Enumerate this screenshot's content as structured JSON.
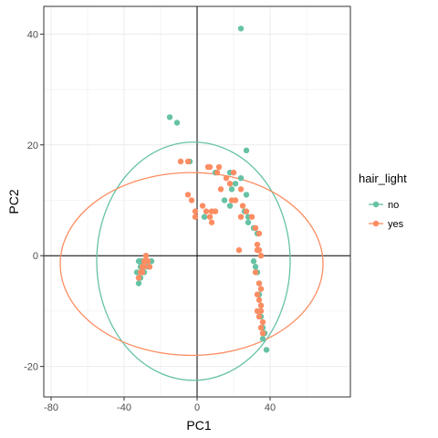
{
  "chart_data": {
    "type": "scatter",
    "xlabel": "PC1",
    "ylabel": "PC2",
    "xlim": [
      -84,
      84
    ],
    "ylim": [
      -25.5,
      45
    ],
    "x_ticks": [
      -80,
      -40,
      0,
      40
    ],
    "y_ticks": [
      -20,
      0,
      20,
      40
    ],
    "grid": true,
    "reference_lines": {
      "x": 0,
      "y": 0
    },
    "legend": {
      "title": "hair_light",
      "placement": "right"
    },
    "series": [
      {
        "name": "no",
        "color": "#66C2A5",
        "points": [
          [
            24,
            41
          ],
          [
            -15,
            25
          ],
          [
            -11,
            24
          ],
          [
            -4,
            17
          ],
          [
            27,
            19
          ],
          [
            10,
            15
          ],
          [
            18,
            15
          ],
          [
            21,
            13
          ],
          [
            24,
            14
          ],
          [
            19,
            12
          ],
          [
            27,
            11
          ],
          [
            15,
            10
          ],
          [
            18,
            9
          ],
          [
            26,
            8
          ],
          [
            28,
            7
          ],
          [
            28,
            6
          ],
          [
            4,
            7
          ],
          [
            31,
            5
          ],
          [
            33,
            4
          ],
          [
            31,
            -1
          ],
          [
            32,
            -2
          ],
          [
            33,
            -3
          ],
          [
            34,
            -5
          ],
          [
            34,
            -7
          ],
          [
            35,
            -9
          ],
          [
            35,
            -11
          ],
          [
            36,
            -13
          ],
          [
            37,
            -14
          ],
          [
            36,
            -15
          ],
          [
            38,
            -17
          ],
          [
            -32,
            -5
          ],
          [
            -32,
            -4
          ],
          [
            -33,
            -3
          ],
          [
            -31,
            -2
          ],
          [
            -32,
            -1
          ],
          [
            -31,
            -1
          ],
          [
            -30,
            -2
          ],
          [
            -28,
            -1
          ],
          [
            -25,
            -1
          ],
          [
            -27,
            -2
          ],
          [
            -29,
            -3
          ],
          [
            -31,
            -4
          ],
          [
            -30,
            -1
          ]
        ],
        "ellipse": {
          "center": [
            -2,
            -1
          ],
          "rx": 53,
          "ry": 21.5
        }
      },
      {
        "name": "yes",
        "color": "#FC8D62",
        "points": [
          [
            -9,
            17
          ],
          [
            -5,
            17
          ],
          [
            6,
            16
          ],
          [
            7,
            16
          ],
          [
            12,
            16
          ],
          [
            11,
            15
          ],
          [
            20,
            15
          ],
          [
            16,
            14
          ],
          [
            18,
            13
          ],
          [
            24,
            12
          ],
          [
            13,
            12
          ],
          [
            -5,
            11
          ],
          [
            -3,
            10
          ],
          [
            19,
            10
          ],
          [
            21,
            10
          ],
          [
            25,
            9
          ],
          [
            27,
            8
          ],
          [
            24,
            7
          ],
          [
            3,
            9
          ],
          [
            5,
            8
          ],
          [
            8,
            8
          ],
          [
            10,
            8
          ],
          [
            -1,
            8
          ],
          [
            -1,
            7
          ],
          [
            7,
            7
          ],
          [
            8,
            6
          ],
          [
            30,
            7
          ],
          [
            32,
            5
          ],
          [
            34,
            4
          ],
          [
            33,
            2
          ],
          [
            34,
            1
          ],
          [
            35,
            0
          ],
          [
            33,
            1
          ],
          [
            32,
            -3
          ],
          [
            34,
            -5
          ],
          [
            35,
            -6
          ],
          [
            33,
            -7
          ],
          [
            34,
            -8
          ],
          [
            35,
            -9
          ],
          [
            33,
            -10
          ],
          [
            35,
            -10
          ],
          [
            34,
            -11
          ],
          [
            36,
            -12
          ],
          [
            35,
            -13
          ],
          [
            36,
            -14
          ],
          [
            -28,
            0
          ],
          [
            -29,
            -1
          ],
          [
            -30,
            -2
          ],
          [
            -31,
            -3
          ],
          [
            -32,
            -4
          ],
          [
            -30,
            -3
          ],
          [
            -29,
            -2
          ],
          [
            -27,
            -1
          ],
          [
            23,
            1
          ],
          [
            -28,
            -1
          ],
          [
            -26,
            -2
          ]
        ],
        "ellipse": {
          "center": [
            -3,
            -1.5
          ],
          "rx": 72,
          "ry": 16.5
        }
      }
    ]
  }
}
